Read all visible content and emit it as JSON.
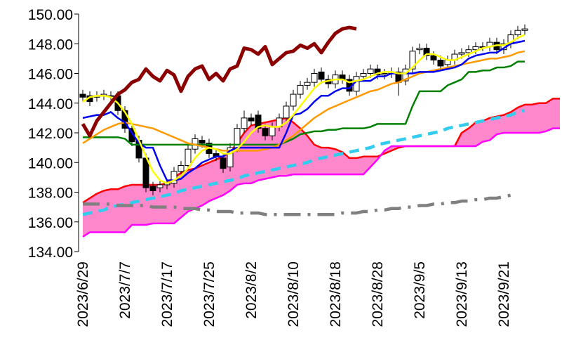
{
  "chart_data": {
    "type": "candlestick",
    "ylim": [
      134,
      150
    ],
    "yticks": [
      {
        "value": 134,
        "label": "134.00"
      },
      {
        "value": 136,
        "label": "136.00"
      },
      {
        "value": 138,
        "label": "138.00"
      },
      {
        "value": 140,
        "label": "140.00"
      },
      {
        "value": 142,
        "label": "142.00"
      },
      {
        "value": 144,
        "label": "144.00"
      },
      {
        "value": 146,
        "label": "146.00"
      },
      {
        "value": 148,
        "label": "148.00"
      },
      {
        "value": 150,
        "label": "150.00"
      }
    ],
    "grid": false,
    "categories": [
      "2023/6/29",
      null,
      null,
      null,
      null,
      null,
      "2023/7/7",
      null,
      null,
      null,
      null,
      null,
      "2023/7/17",
      null,
      null,
      null,
      null,
      null,
      "2023/7/25",
      null,
      null,
      null,
      null,
      null,
      "2023/8/2",
      null,
      null,
      null,
      null,
      null,
      "2023/8/10",
      null,
      null,
      null,
      null,
      null,
      "2023/8/18",
      null,
      null,
      null,
      null,
      null,
      "2023/8/28",
      null,
      null,
      null,
      null,
      null,
      "2023/9/5",
      null,
      null,
      null,
      null,
      null,
      "2023/9/13",
      null,
      null,
      null,
      null,
      null,
      "2023/9/21",
      null,
      null,
      null,
      null,
      null,
      null,
      null,
      null
    ],
    "up_color": "#ffffff",
    "down_color": "#000000",
    "cloud_color": "#ff88cc",
    "cloud_between": [
      0,
      1
    ],
    "candles": {
      "open": [
        144.6,
        144.5,
        144.4,
        144.5,
        144.5,
        144.5,
        143.5,
        142.3,
        141.5,
        140.3,
        138.4,
        138.3,
        138.5,
        138.6,
        139.4,
        139.8,
        140.9,
        141.5,
        141.3,
        140.6,
        140.3,
        139.7,
        141.0,
        142.3,
        143.0,
        143.2,
        142.3,
        141.8,
        142.4,
        143.0,
        143.8,
        144.6,
        145.2,
        145.4,
        146.1,
        145.6,
        145.3,
        145.9,
        145.6,
        144.8,
        145.8,
        146.0,
        146.3,
        145.9,
        146.0,
        146.1,
        145.5,
        146.3,
        147.6,
        147.7,
        147.2,
        146.9,
        146.6,
        146.9,
        147.3,
        147.4,
        147.6,
        147.8,
        147.8,
        148.1,
        147.6,
        148.0,
        148.6,
        148.9,
        null,
        null,
        null,
        null,
        null
      ],
      "high": [
        144.9,
        144.8,
        144.8,
        144.9,
        144.8,
        144.8,
        143.8,
        142.6,
        141.8,
        140.6,
        138.7,
        138.8,
        138.9,
        139.7,
        140.1,
        141.2,
        141.9,
        141.8,
        141.6,
        140.9,
        140.6,
        141.3,
        142.6,
        143.5,
        143.3,
        143.5,
        142.6,
        142.7,
        143.3,
        144.1,
        144.9,
        145.5,
        145.7,
        146.3,
        146.4,
        145.9,
        146.2,
        146.2,
        145.9,
        146.1,
        146.3,
        146.6,
        146.6,
        146.3,
        146.4,
        146.4,
        146.6,
        147.8,
        148.0,
        148.0,
        147.5,
        147.2,
        147.2,
        147.6,
        147.7,
        147.9,
        148.1,
        148.1,
        148.4,
        148.4,
        148.3,
        148.9,
        149.2,
        149.3,
        null,
        null,
        null,
        null,
        null
      ],
      "low": [
        144.1,
        143.8,
        144.1,
        144.2,
        144.2,
        143.2,
        142.0,
        141.1,
        140.0,
        138.0,
        137.8,
        138.0,
        138.2,
        138.3,
        139.1,
        139.5,
        140.6,
        141.0,
        140.3,
        140.1,
        139.3,
        139.4,
        140.7,
        142.0,
        142.5,
        142.0,
        141.5,
        141.5,
        142.1,
        142.7,
        143.5,
        144.3,
        144.9,
        145.1,
        145.3,
        145.0,
        145.0,
        145.3,
        144.5,
        144.5,
        145.5,
        145.7,
        145.6,
        145.6,
        145.7,
        144.5,
        145.2,
        146.0,
        147.3,
        146.9,
        146.6,
        146.2,
        146.3,
        146.6,
        147.0,
        147.1,
        147.3,
        147.5,
        147.5,
        147.3,
        147.3,
        147.7,
        148.3,
        148.6,
        null,
        null,
        null,
        null,
        null
      ],
      "close": [
        144.4,
        144.1,
        144.5,
        144.6,
        144.5,
        143.5,
        142.3,
        141.4,
        140.3,
        138.3,
        138.1,
        138.5,
        138.6,
        139.4,
        139.8,
        140.9,
        141.6,
        141.3,
        140.6,
        140.4,
        139.6,
        141.0,
        142.3,
        143.0,
        142.8,
        142.3,
        141.8,
        142.4,
        143.0,
        143.8,
        144.6,
        145.2,
        145.4,
        146.0,
        145.6,
        145.3,
        145.9,
        145.6,
        144.8,
        145.8,
        146.0,
        146.3,
        145.9,
        146.0,
        146.1,
        145.4,
        146.3,
        147.5,
        147.7,
        147.2,
        146.9,
        146.5,
        146.9,
        147.3,
        147.4,
        147.6,
        147.8,
        147.8,
        148.1,
        147.6,
        148.0,
        148.6,
        148.9,
        149.0,
        null,
        null,
        null,
        null,
        null
      ]
    },
    "series": [
      {
        "color": "#ff0000",
        "width": 2.5,
        "values": [
          137.3,
          137.6,
          137.9,
          138.1,
          138.2,
          138.2,
          138.4,
          138.5,
          138.5,
          138.5,
          138.5,
          138.5,
          138.6,
          139.0,
          139.3,
          139.5,
          139.6,
          139.8,
          140.0,
          140.2,
          140.4,
          140.7,
          141.3,
          142.0,
          142.5,
          142.6,
          142.7,
          142.8,
          142.9,
          143.0,
          142.7,
          142.3,
          141.8,
          141.2,
          141.0,
          141.0,
          140.9,
          140.7,
          140.3,
          140.3,
          140.4,
          140.4,
          140.4,
          140.6,
          140.8,
          141.0,
          141.1,
          141.1,
          141.1,
          141.1,
          141.1,
          141.1,
          141.1,
          141.1,
          142.0,
          142.3,
          142.7,
          142.8,
          143.0,
          143.1,
          143.2,
          143.4,
          143.7,
          143.9,
          143.9,
          144.0,
          144.0,
          144.3,
          144.3
        ]
      },
      {
        "color": "#ff00ff",
        "width": 2.5,
        "values": [
          135.0,
          135.3,
          135.3,
          135.3,
          135.3,
          135.3,
          135.3,
          135.8,
          135.8,
          135.8,
          135.9,
          135.9,
          135.9,
          135.9,
          136.3,
          136.7,
          136.9,
          137.1,
          137.4,
          137.6,
          137.8,
          138.1,
          138.5,
          138.6,
          138.6,
          138.8,
          138.9,
          139.0,
          139.1,
          139.1,
          139.2,
          139.2,
          139.2,
          139.2,
          139.2,
          139.2,
          139.2,
          139.2,
          139.2,
          139.2,
          139.2,
          139.7,
          140.2,
          140.8,
          141.1,
          141.1,
          141.1,
          141.1,
          141.1,
          141.1,
          141.1,
          141.1,
          141.1,
          141.1,
          141.1,
          141.1,
          141.1,
          141.4,
          141.5,
          141.9,
          142.0,
          142.0,
          142.0,
          142.0,
          142.0,
          142.0,
          142.1,
          142.3,
          142.3
        ]
      },
      {
        "color": "#33ccee",
        "width": 4.5,
        "dash": "14,9",
        "values": [
          136.5,
          136.6,
          136.7,
          136.8,
          137.0,
          137.1,
          137.2,
          137.3,
          137.4,
          137.5,
          137.6,
          137.7,
          137.8,
          137.9,
          138.1,
          138.2,
          138.3,
          138.4,
          138.5,
          138.6,
          138.7,
          138.8,
          138.9,
          139.1,
          139.2,
          139.3,
          139.4,
          139.5,
          139.6,
          139.7,
          139.8,
          139.9,
          140.0,
          140.2,
          140.3,
          140.4,
          140.5,
          140.6,
          140.7,
          140.8,
          140.9,
          141.0,
          141.2,
          141.3,
          141.4,
          141.5,
          141.6,
          141.7,
          141.8,
          141.9,
          142.0,
          142.1,
          142.3,
          142.4,
          142.5,
          142.6,
          142.7,
          142.8,
          142.9,
          143.0,
          143.1,
          143.2,
          143.4,
          143.5,
          null,
          null,
          null,
          null,
          null
        ]
      },
      {
        "color": "#808080",
        "width": 4.5,
        "dash": "24,10,4,10",
        "values": [
          137.2,
          137.2,
          137.2,
          137.2,
          137.2,
          137.1,
          137.1,
          137.1,
          137.1,
          137.1,
          137.0,
          137.0,
          137.0,
          137.0,
          136.9,
          136.9,
          136.9,
          136.8,
          136.8,
          136.7,
          136.7,
          136.7,
          136.6,
          136.6,
          136.6,
          136.6,
          136.5,
          136.5,
          136.5,
          136.5,
          136.5,
          136.5,
          136.5,
          136.5,
          136.5,
          136.5,
          136.5,
          136.6,
          136.6,
          136.6,
          136.7,
          136.7,
          136.8,
          136.8,
          136.9,
          136.9,
          137.0,
          137.0,
          137.1,
          137.1,
          137.2,
          137.2,
          137.3,
          137.3,
          137.4,
          137.4,
          137.5,
          137.5,
          137.6,
          137.6,
          137.7,
          137.8,
          null,
          null,
          null,
          null,
          null,
          null,
          null
        ]
      },
      {
        "color": "#008000",
        "width": 2.5,
        "values": [
          141.7,
          141.7,
          141.7,
          141.7,
          141.7,
          141.7,
          141.6,
          141.2,
          141.2,
          141.2,
          141.2,
          141.2,
          141.2,
          141.2,
          141.2,
          141.2,
          141.2,
          141.2,
          141.2,
          141.2,
          141.2,
          141.2,
          141.2,
          141.2,
          141.2,
          141.2,
          141.2,
          141.2,
          141.2,
          141.4,
          141.6,
          141.9,
          142.0,
          142.1,
          142.1,
          142.2,
          142.2,
          142.3,
          142.3,
          142.3,
          142.3,
          142.4,
          142.6,
          142.6,
          142.6,
          142.6,
          142.6,
          143.8,
          144.8,
          144.8,
          144.8,
          144.8,
          145.2,
          145.4,
          145.6,
          146.1,
          146.1,
          146.2,
          146.2,
          146.4,
          146.4,
          146.5,
          146.8,
          146.8,
          null,
          null,
          null,
          null,
          null
        ]
      },
      {
        "color": "#ff9900",
        "width": 2.5,
        "values": [
          141.3,
          141.6,
          141.9,
          142.2,
          142.4,
          142.6,
          142.7,
          142.6,
          142.5,
          142.4,
          142.3,
          142.1,
          141.9,
          141.7,
          141.5,
          141.3,
          141.2,
          141.1,
          141.0,
          140.9,
          140.8,
          140.8,
          140.8,
          140.8,
          140.8,
          140.8,
          140.9,
          141.0,
          141.2,
          141.5,
          141.8,
          142.2,
          142.6,
          143.0,
          143.3,
          143.6,
          143.8,
          144.0,
          144.2,
          144.4,
          144.6,
          144.8,
          144.9,
          145.1,
          145.3,
          145.4,
          145.6,
          145.8,
          146.0,
          146.1,
          146.2,
          146.3,
          146.4,
          146.5,
          146.6,
          146.7,
          146.8,
          146.9,
          147.0,
          147.0,
          147.1,
          147.2,
          147.4,
          147.5,
          null,
          null,
          null,
          null,
          null
        ]
      },
      {
        "color": "#0000ee",
        "width": 2.5,
        "values": [
          143.0,
          143.1,
          143.2,
          143.2,
          143.4,
          143.0,
          142.7,
          142.0,
          141.3,
          141.0,
          141.0,
          139.8,
          138.8,
          138.8,
          138.9,
          139.3,
          139.6,
          140.0,
          140.2,
          140.4,
          140.4,
          140.8,
          141.0,
          141.0,
          141.0,
          141.0,
          141.0,
          141.0,
          141.0,
          142.0,
          143.2,
          143.3,
          143.6,
          144.1,
          144.5,
          144.5,
          144.8,
          145.0,
          145.0,
          145.5,
          145.5,
          145.5,
          145.8,
          145.8,
          146.0,
          146.0,
          146.0,
          146.0,
          146.1,
          146.1,
          146.1,
          146.2,
          146.3,
          146.4,
          146.6,
          147.0,
          147.2,
          147.3,
          147.4,
          147.4,
          147.7,
          148.0,
          148.1,
          148.2,
          null,
          null,
          null,
          null,
          null
        ]
      },
      {
        "color": "#ffff00",
        "width": 2.5,
        "values": [
          144.1,
          144.4,
          144.5,
          144.5,
          144.4,
          144.0,
          143.4,
          142.6,
          141.5,
          140.4,
          139.4,
          138.8,
          138.6,
          138.8,
          139.1,
          139.6,
          140.3,
          140.8,
          141.0,
          140.9,
          140.6,
          140.6,
          140.9,
          141.4,
          142.0,
          142.4,
          142.5,
          142.4,
          142.4,
          142.7,
          143.2,
          143.8,
          144.4,
          145.0,
          145.4,
          145.5,
          145.6,
          145.6,
          145.4,
          145.5,
          145.6,
          145.8,
          146.0,
          146.1,
          146.1,
          146.0,
          146.0,
          146.4,
          146.9,
          147.3,
          147.3,
          147.1,
          146.9,
          146.9,
          147.1,
          147.3,
          147.5,
          147.7,
          147.8,
          147.9,
          147.9,
          148.1,
          148.4,
          148.6,
          null,
          null,
          null,
          null,
          null
        ]
      },
      {
        "color": "#8b0000",
        "width": 5,
        "values": [
          142.6,
          141.8,
          142.8,
          143.4,
          144.0,
          144.6,
          144.9,
          145.4,
          145.6,
          146.3,
          145.8,
          145.5,
          146.2,
          145.9,
          144.8,
          145.8,
          146.3,
          146.5,
          145.6,
          146.0,
          145.5,
          146.3,
          146.5,
          147.7,
          147.6,
          147.3,
          147.8,
          146.6,
          147.0,
          147.4,
          147.5,
          147.9,
          147.7,
          148.0,
          147.4,
          148.1,
          148.7,
          149.0,
          149.1,
          149.0,
          null,
          null,
          null,
          null,
          null,
          null,
          null,
          null,
          null,
          null,
          null,
          null,
          null,
          null,
          null,
          null,
          null,
          null,
          null,
          null,
          null,
          null,
          null,
          null,
          null,
          null,
          null,
          null,
          null
        ]
      }
    ]
  }
}
